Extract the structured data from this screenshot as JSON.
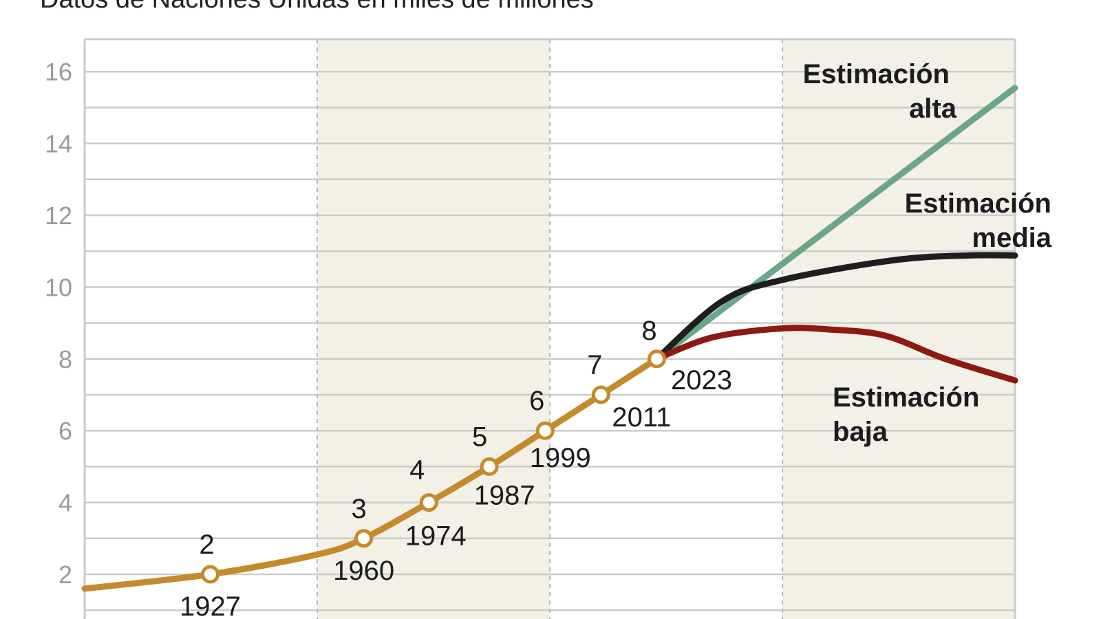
{
  "chart_data": {
    "type": "line",
    "subtitle": "Datos de Naciones Unidas en miles de millones",
    "xlim": [
      1900,
      2100
    ],
    "ylim": [
      0,
      17
    ],
    "yticks": [
      2,
      4,
      6,
      8,
      10,
      12,
      14,
      16
    ],
    "grid": true,
    "shaded_periods": [
      [
        1950,
        2000
      ],
      [
        2050,
        2100
      ]
    ],
    "historical": {
      "color": "#c58a2b",
      "points": [
        [
          1900,
          1.6
        ],
        [
          1927,
          2
        ],
        [
          1950,
          2.55
        ],
        [
          1960,
          3
        ],
        [
          1974,
          4
        ],
        [
          1987,
          5
        ],
        [
          1999,
          6
        ],
        [
          2011,
          7
        ],
        [
          2023,
          8
        ]
      ]
    },
    "milestones": [
      {
        "year": "1927",
        "value": "2",
        "x": 1927,
        "y": 2
      },
      {
        "year": "1960",
        "value": "3",
        "x": 1960,
        "y": 3
      },
      {
        "year": "1974",
        "value": "4",
        "x": 1974,
        "y": 4
      },
      {
        "year": "1987",
        "value": "5",
        "x": 1987,
        "y": 5
      },
      {
        "year": "1999",
        "value": "6",
        "x": 1999,
        "y": 6
      },
      {
        "year": "2011",
        "value": "7",
        "x": 2011,
        "y": 7
      },
      {
        "year": "2023",
        "value": "8",
        "x": 2023,
        "y": 8
      }
    ],
    "series": [
      {
        "name": "Estimación alta",
        "color": "#6aa68b",
        "points": [
          [
            2023,
            8
          ],
          [
            2100,
            15.55
          ]
        ]
      },
      {
        "name": "Estimación media",
        "color": "#1e1e1e",
        "points": [
          [
            2023,
            8
          ],
          [
            2037,
            9.6
          ],
          [
            2050,
            10.2
          ],
          [
            2074,
            10.75
          ],
          [
            2090,
            10.88
          ],
          [
            2100,
            10.88
          ]
        ]
      },
      {
        "name": "Estimación baja",
        "color": "#8c1a10",
        "points": [
          [
            2023,
            8
          ],
          [
            2035,
            8.6
          ],
          [
            2050,
            8.85
          ],
          [
            2060,
            8.82
          ],
          [
            2072,
            8.65
          ],
          [
            2085,
            8.0
          ],
          [
            2100,
            7.4
          ]
        ]
      }
    ],
    "labels": {
      "alta": [
        "Estimación",
        "alta"
      ],
      "media": [
        "Estimación",
        "media"
      ],
      "baja": [
        "Estimación",
        "baja"
      ]
    }
  }
}
